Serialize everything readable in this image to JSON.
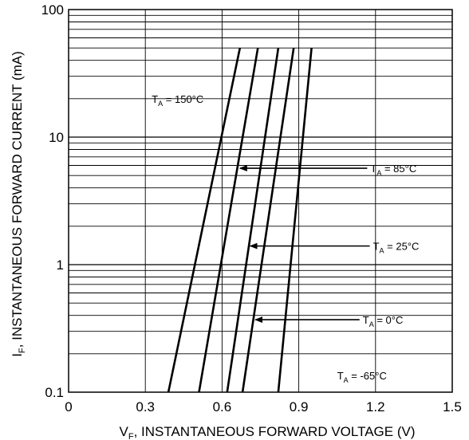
{
  "chart_data": {
    "type": "line",
    "title": "",
    "xlabel_main": "V",
    "xlabel_sub": "F",
    "xlabel_rest": ", INSTANTANEOUS FORWARD VOLTAGE (V)",
    "ylabel_main": "I",
    "ylabel_sub": "F",
    "ylabel_rest": ", INSTANTANEOUS FORWARD CURRENT (mA)",
    "xlim": [
      0,
      1.5
    ],
    "ylim": [
      0.1,
      100
    ],
    "yscale": "log",
    "grid": true,
    "x_ticks": [
      {
        "value": 0,
        "label": "0"
      },
      {
        "value": 0.3,
        "label": "0.3"
      },
      {
        "value": 0.6,
        "label": "0.6"
      },
      {
        "value": 0.9,
        "label": "0.9"
      },
      {
        "value": 1.2,
        "label": "1.2"
      },
      {
        "value": 1.5,
        "label": "1.5"
      }
    ],
    "y_ticks": [
      {
        "value": 0.1,
        "label": "0.1"
      },
      {
        "value": 1,
        "label": "1"
      },
      {
        "value": 10,
        "label": "10"
      },
      {
        "value": 100,
        "label": "100"
      }
    ],
    "series": [
      {
        "name": "150°C",
        "points": [
          [
            0.39,
            0.1
          ],
          [
            0.67,
            50
          ]
        ]
      },
      {
        "name": "85°C",
        "points": [
          [
            0.51,
            0.1
          ],
          [
            0.74,
            50
          ]
        ]
      },
      {
        "name": "25°C",
        "points": [
          [
            0.62,
            0.1
          ],
          [
            0.82,
            50
          ]
        ]
      },
      {
        "name": "0°C",
        "points": [
          [
            0.68,
            0.1
          ],
          [
            0.88,
            50
          ]
        ]
      },
      {
        "name": "-65°C",
        "points": [
          [
            0.82,
            0.1
          ],
          [
            0.95,
            50
          ]
        ]
      }
    ],
    "annotations": [
      {
        "prefix": "T",
        "sub": "A",
        "text": " = 150°C",
        "label_x": 0.325,
        "label_y": 20,
        "arrow": false
      },
      {
        "prefix": "T",
        "sub": "A",
        "text": " = 85°C",
        "label_x": 1.18,
        "label_y": 5.7,
        "arrow": true,
        "tip_x": 0.67,
        "tip_y": 5.7
      },
      {
        "prefix": "T",
        "sub": "A",
        "text": " = 25°C",
        "label_x": 1.19,
        "label_y": 1.4,
        "arrow": true,
        "tip_x": 0.71,
        "tip_y": 1.4
      },
      {
        "prefix": "T",
        "sub": "A",
        "text": " = 0°C",
        "label_x": 1.15,
        "label_y": 0.37,
        "arrow": true,
        "tip_x": 0.73,
        "tip_y": 0.37
      },
      {
        "prefix": "T",
        "sub": "A",
        "text": " = -65°C",
        "label_x": 1.05,
        "label_y": 0.135,
        "arrow": false
      }
    ]
  }
}
